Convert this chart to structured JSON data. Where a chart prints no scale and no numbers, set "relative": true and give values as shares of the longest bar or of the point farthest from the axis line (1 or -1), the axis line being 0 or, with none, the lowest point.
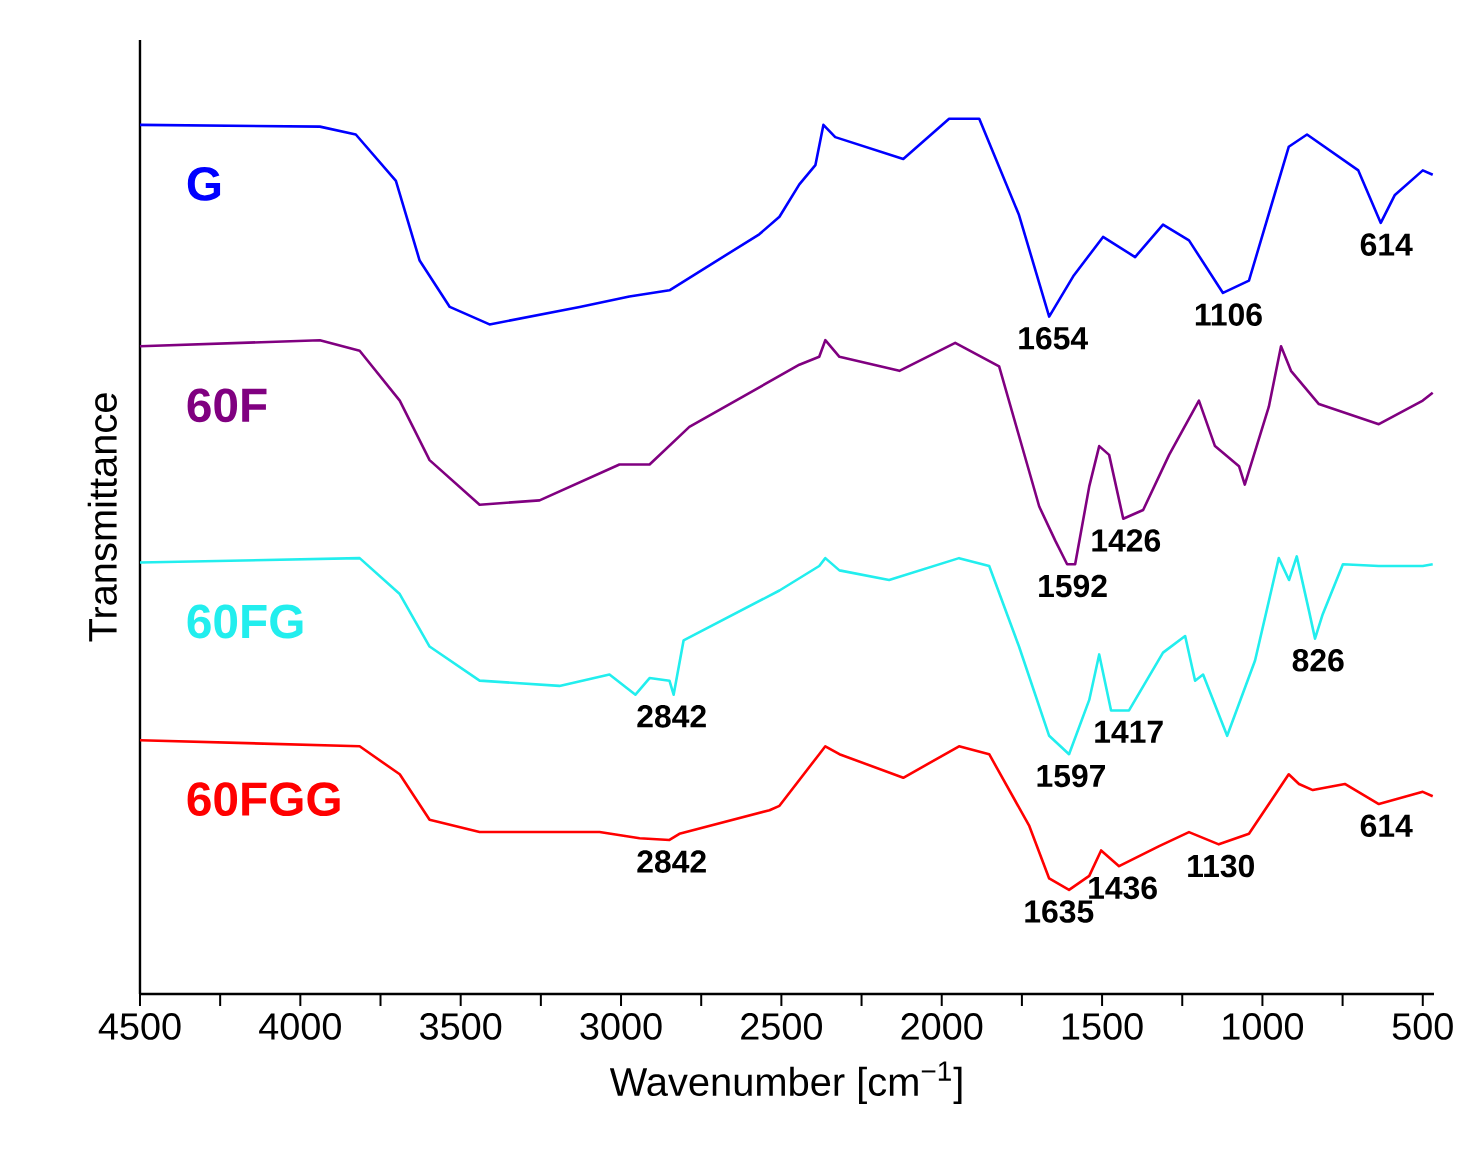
{
  "chart_data": {
    "type": "line",
    "relative": true,
    "xlabel": "Wavenumber [cm$^{−1}$]",
    "ylabel": "Transmittance",
    "xlim": [
      4500,
      465
    ],
    "xticks": [
      4500,
      {
        "value": 4250,
        "label": null
      },
      4000,
      {
        "value": 3750,
        "label": null
      },
      3500,
      {
        "value": 3250,
        "label": null
      },
      3000,
      {
        "value": 2750,
        "label": null
      },
      2500,
      {
        "value": 2250,
        "label": null
      },
      2000,
      {
        "value": 1750,
        "label": null
      },
      1500,
      {
        "value": 1250,
        "label": null
      },
      1000,
      {
        "value": 750,
        "label": null
      },
      500
    ],
    "marker": "none",
    "line_style": "solid",
    "series": [
      {
        "name": "G",
        "color": "#0000ff",
        "x": [
          4500,
          3939,
          3827,
          3702,
          3628,
          3534,
          3410,
          3129,
          2974,
          2849,
          2569,
          2506,
          2444,
          2394,
          2369,
          2332,
          2120,
          1977,
          1883,
          1759,
          1665,
          1590,
          1497,
          1397,
          1310,
          1229,
          1123,
          1042,
          918,
          861,
          701,
          631,
          587,
          500,
          469
        ],
        "values": [
          0.993,
          0.991,
          0.982,
          0.929,
          0.838,
          0.785,
          0.765,
          0.785,
          0.797,
          0.804,
          0.868,
          0.888,
          0.925,
          0.947,
          0.993,
          0.979,
          0.954,
          1,
          1,
          0.89,
          0.774,
          0.82,
          0.865,
          0.842,
          0.879,
          0.861,
          0.801,
          0.815,
          0.968,
          0.982,
          0.941,
          0.881,
          0.913,
          0.941,
          0.936
        ]
      },
      {
        "name": "60F",
        "color": "#800080",
        "x": [
          4500,
          3939,
          3815,
          3690,
          3597,
          3441,
          3254,
          3005,
          2911,
          2787,
          2444,
          2382,
          2363,
          2319,
          2132,
          1958,
          1821,
          1696,
          1646,
          1609,
          1584,
          1540,
          1509,
          1478,
          1434,
          1372,
          1291,
          1198,
          1148,
          1073,
          1055,
          980,
          942,
          911,
          824,
          637,
          500,
          469
        ],
        "values": [
          0.74,
          0.747,
          0.735,
          0.678,
          0.61,
          0.559,
          0.564,
          0.605,
          0.605,
          0.648,
          0.719,
          0.728,
          0.747,
          0.728,
          0.712,
          0.744,
          0.717,
          0.557,
          0.518,
          0.491,
          0.491,
          0.58,
          0.626,
          0.616,
          0.543,
          0.553,
          0.616,
          0.678,
          0.626,
          0.603,
          0.582,
          0.671,
          0.74,
          0.712,
          0.674,
          0.651,
          0.678,
          0.687
        ]
      },
      {
        "name": "60FG",
        "color": "#22eeee",
        "x": [
          4500,
          3815,
          3690,
          3597,
          3441,
          3192,
          3036,
          2955,
          2911,
          2849,
          2836,
          2805,
          2506,
          2382,
          2363,
          2319,
          2164,
          1946,
          1852,
          1759,
          1665,
          1603,
          1540,
          1509,
          1472,
          1416,
          1310,
          1241,
          1210,
          1185,
          1110,
          1023,
          949,
          917,
          893,
          855,
          836,
          812,
          749,
          637,
          500,
          469
        ],
        "values": [
          0.493,
          0.498,
          0.457,
          0.397,
          0.358,
          0.352,
          0.365,
          0.342,
          0.361,
          0.358,
          0.342,
          0.404,
          0.461,
          0.489,
          0.498,
          0.484,
          0.473,
          0.498,
          0.489,
          0.397,
          0.295,
          0.274,
          0.336,
          0.388,
          0.324,
          0.324,
          0.39,
          0.409,
          0.358,
          0.365,
          0.295,
          0.381,
          0.498,
          0.473,
          0.5,
          0.438,
          0.406,
          0.434,
          0.491,
          0.489,
          0.489,
          0.491
        ]
      },
      {
        "name": "60FGG",
        "color": "#ff0000",
        "x": [
          4500,
          3815,
          3690,
          3597,
          3441,
          3067,
          2942,
          2849,
          2818,
          2537,
          2506,
          2382,
          2363,
          2319,
          2120,
          1946,
          1852,
          1727,
          1665,
          1603,
          1540,
          1503,
          1447,
          1322,
          1229,
          1136,
          1042,
          918,
          886,
          843,
          743,
          637,
          500,
          469
        ],
        "values": [
          0.29,
          0.283,
          0.251,
          0.199,
          0.185,
          0.185,
          0.178,
          0.176,
          0.183,
          0.21,
          0.215,
          0.274,
          0.283,
          0.274,
          0.247,
          0.283,
          0.274,
          0.192,
          0.132,
          0.119,
          0.135,
          0.164,
          0.146,
          0.169,
          0.185,
          0.171,
          0.183,
          0.251,
          0.24,
          0.233,
          0.24,
          0.217,
          0.231,
          0.226
        ]
      }
    ],
    "annotations": [
      {
        "text": "1654",
        "x": 1654,
        "y": 0.774
      },
      {
        "text": "1106",
        "x": 1106,
        "y": 0.801
      },
      {
        "text": "614",
        "x": 614,
        "y": 0.881
      },
      {
        "text": "1592",
        "x": 1592,
        "y": 0.491
      },
      {
        "text": "1426",
        "x": 1426,
        "y": 0.543
      },
      {
        "text": "2842",
        "x": 2842,
        "y": 0.342
      },
      {
        "text": "1597",
        "x": 1597,
        "y": 0.274
      },
      {
        "text": "1417",
        "x": 1417,
        "y": 0.324
      },
      {
        "text": "826",
        "x": 826,
        "y": 0.406
      },
      {
        "text": "2842",
        "x": 2842,
        "y": 0.176
      },
      {
        "text": "1635",
        "x": 1635,
        "y": 0.119
      },
      {
        "text": "1436",
        "x": 1436,
        "y": 0.146
      },
      {
        "text": "1130",
        "x": 1130,
        "y": 0.171
      },
      {
        "text": "614",
        "x": 614,
        "y": 0.217
      }
    ]
  }
}
